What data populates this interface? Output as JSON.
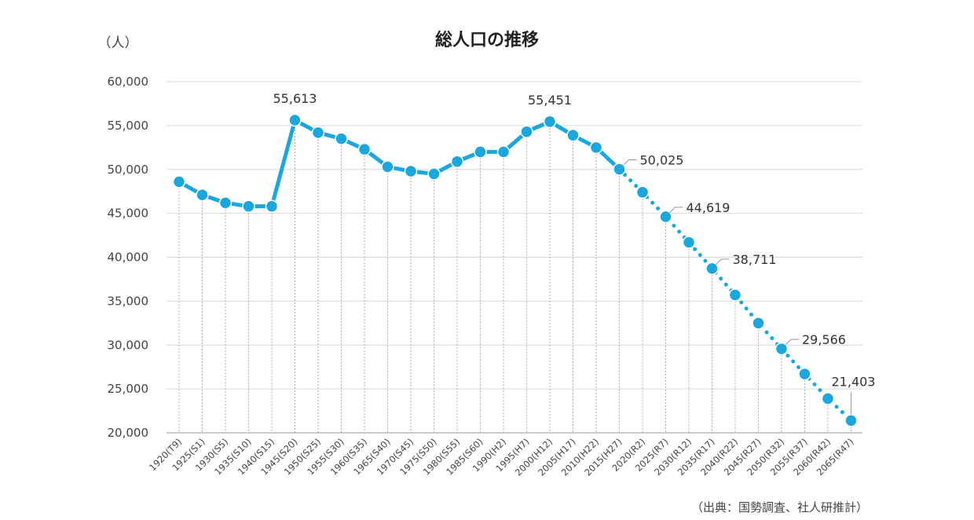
{
  "chart_data": {
    "type": "line",
    "title": "総人口の推移",
    "y_unit_label": "（人）",
    "source_note": "（出典：国勢調査、社人研推計）",
    "ylim": [
      20000,
      60000
    ],
    "y_ticks": [
      "20,000",
      "25,000",
      "30,000",
      "35,000",
      "40,000",
      "45,000",
      "50,000",
      "55,000",
      "60,000"
    ],
    "y_tick_values": [
      20000,
      25000,
      30000,
      35000,
      40000,
      45000,
      50000,
      55000,
      60000
    ],
    "grid": true,
    "categories": [
      "1920(T9)",
      "1925(S1)",
      "1930(S5)",
      "1935(S10)",
      "1940(S15)",
      "1945(S20)",
      "1950(S25)",
      "1955(S30)",
      "1960(S35)",
      "1965(S40)",
      "1970(S45)",
      "1975(S50)",
      "1980(S55)",
      "1985(S60)",
      "1990(H2)",
      "1995(H7)",
      "2000(H12)",
      "2005(H17)",
      "2010(H22)",
      "2015(H27)",
      "2020(R2)",
      "2025(R7)",
      "2030(R12)",
      "2035(R17)",
      "2040(R22)",
      "2045(R27)",
      "2050(R32)",
      "2055(R37)",
      "2060(R42)",
      "2065(R47)"
    ],
    "values": [
      48600,
      47100,
      46200,
      45800,
      45800,
      55613,
      54200,
      53500,
      52300,
      50300,
      49800,
      49500,
      50900,
      52000,
      52000,
      54300,
      55451,
      53900,
      52500,
      50025,
      47400,
      44619,
      41700,
      38711,
      35700,
      32500,
      29566,
      26700,
      23900,
      21403
    ],
    "actual_until_index": 19,
    "projected_from_index": 19,
    "color": "#1AA7DE",
    "annotations": [
      {
        "index": 5,
        "label": "55,613"
      },
      {
        "index": 16,
        "label": "55,451"
      },
      {
        "index": 19,
        "label": "50,025"
      },
      {
        "index": 21,
        "label": "44,619"
      },
      {
        "index": 23,
        "label": "38,711"
      },
      {
        "index": 26,
        "label": "29,566"
      },
      {
        "index": 29,
        "label": "21,403"
      }
    ]
  }
}
